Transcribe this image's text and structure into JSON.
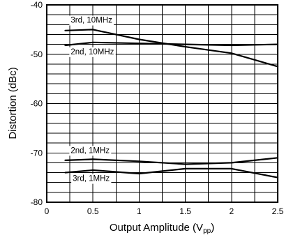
{
  "chart_data": {
    "type": "line",
    "xlabel": "Output Amplitude (V",
    "xlabel_sub": "pp",
    "xlabel_close": ")",
    "ylabel": "Distortion (dBc)",
    "xlim": [
      0,
      2.5
    ],
    "ylim": [
      -80,
      -40
    ],
    "x_ticks": [
      0,
      0.5,
      1,
      1.5,
      2,
      2.5
    ],
    "x_tick_labels": [
      "0",
      "0.5",
      "1",
      "1.5",
      "2",
      "2.5"
    ],
    "y_ticks": [
      -40,
      -50,
      -60,
      -70,
      -80
    ],
    "y_tick_labels": [
      "-40",
      "-50",
      "-60",
      "-70",
      "-80"
    ],
    "x_minor_divisions": 10,
    "y_minor_divisions": 20,
    "grid": true,
    "series": [
      {
        "name": "3rd, 10MHz",
        "x": [
          0.2,
          0.5,
          1.0,
          1.5,
          2.0,
          2.5
        ],
        "y": [
          -45.2,
          -45.0,
          -47.0,
          -48.5,
          -49.8,
          -52.5
        ]
      },
      {
        "name": "2nd, 10MHz",
        "x": [
          0.2,
          0.5,
          1.0,
          1.5,
          2.0,
          2.5
        ],
        "y": [
          -48.2,
          -47.6,
          -47.8,
          -48.0,
          -48.2,
          -48.0
        ]
      },
      {
        "name": "2nd, 1MHz",
        "x": [
          0.2,
          0.5,
          1.0,
          1.5,
          2.0,
          2.5
        ],
        "y": [
          -71.5,
          -71.3,
          -71.7,
          -72.3,
          -72.0,
          -71.0
        ]
      },
      {
        "name": "3rd, 1MHz",
        "x": [
          0.2,
          0.5,
          1.0,
          1.5,
          2.0,
          2.5
        ],
        "y": [
          -74.0,
          -73.5,
          -74.2,
          -73.2,
          -73.2,
          -75.0
        ]
      }
    ]
  }
}
